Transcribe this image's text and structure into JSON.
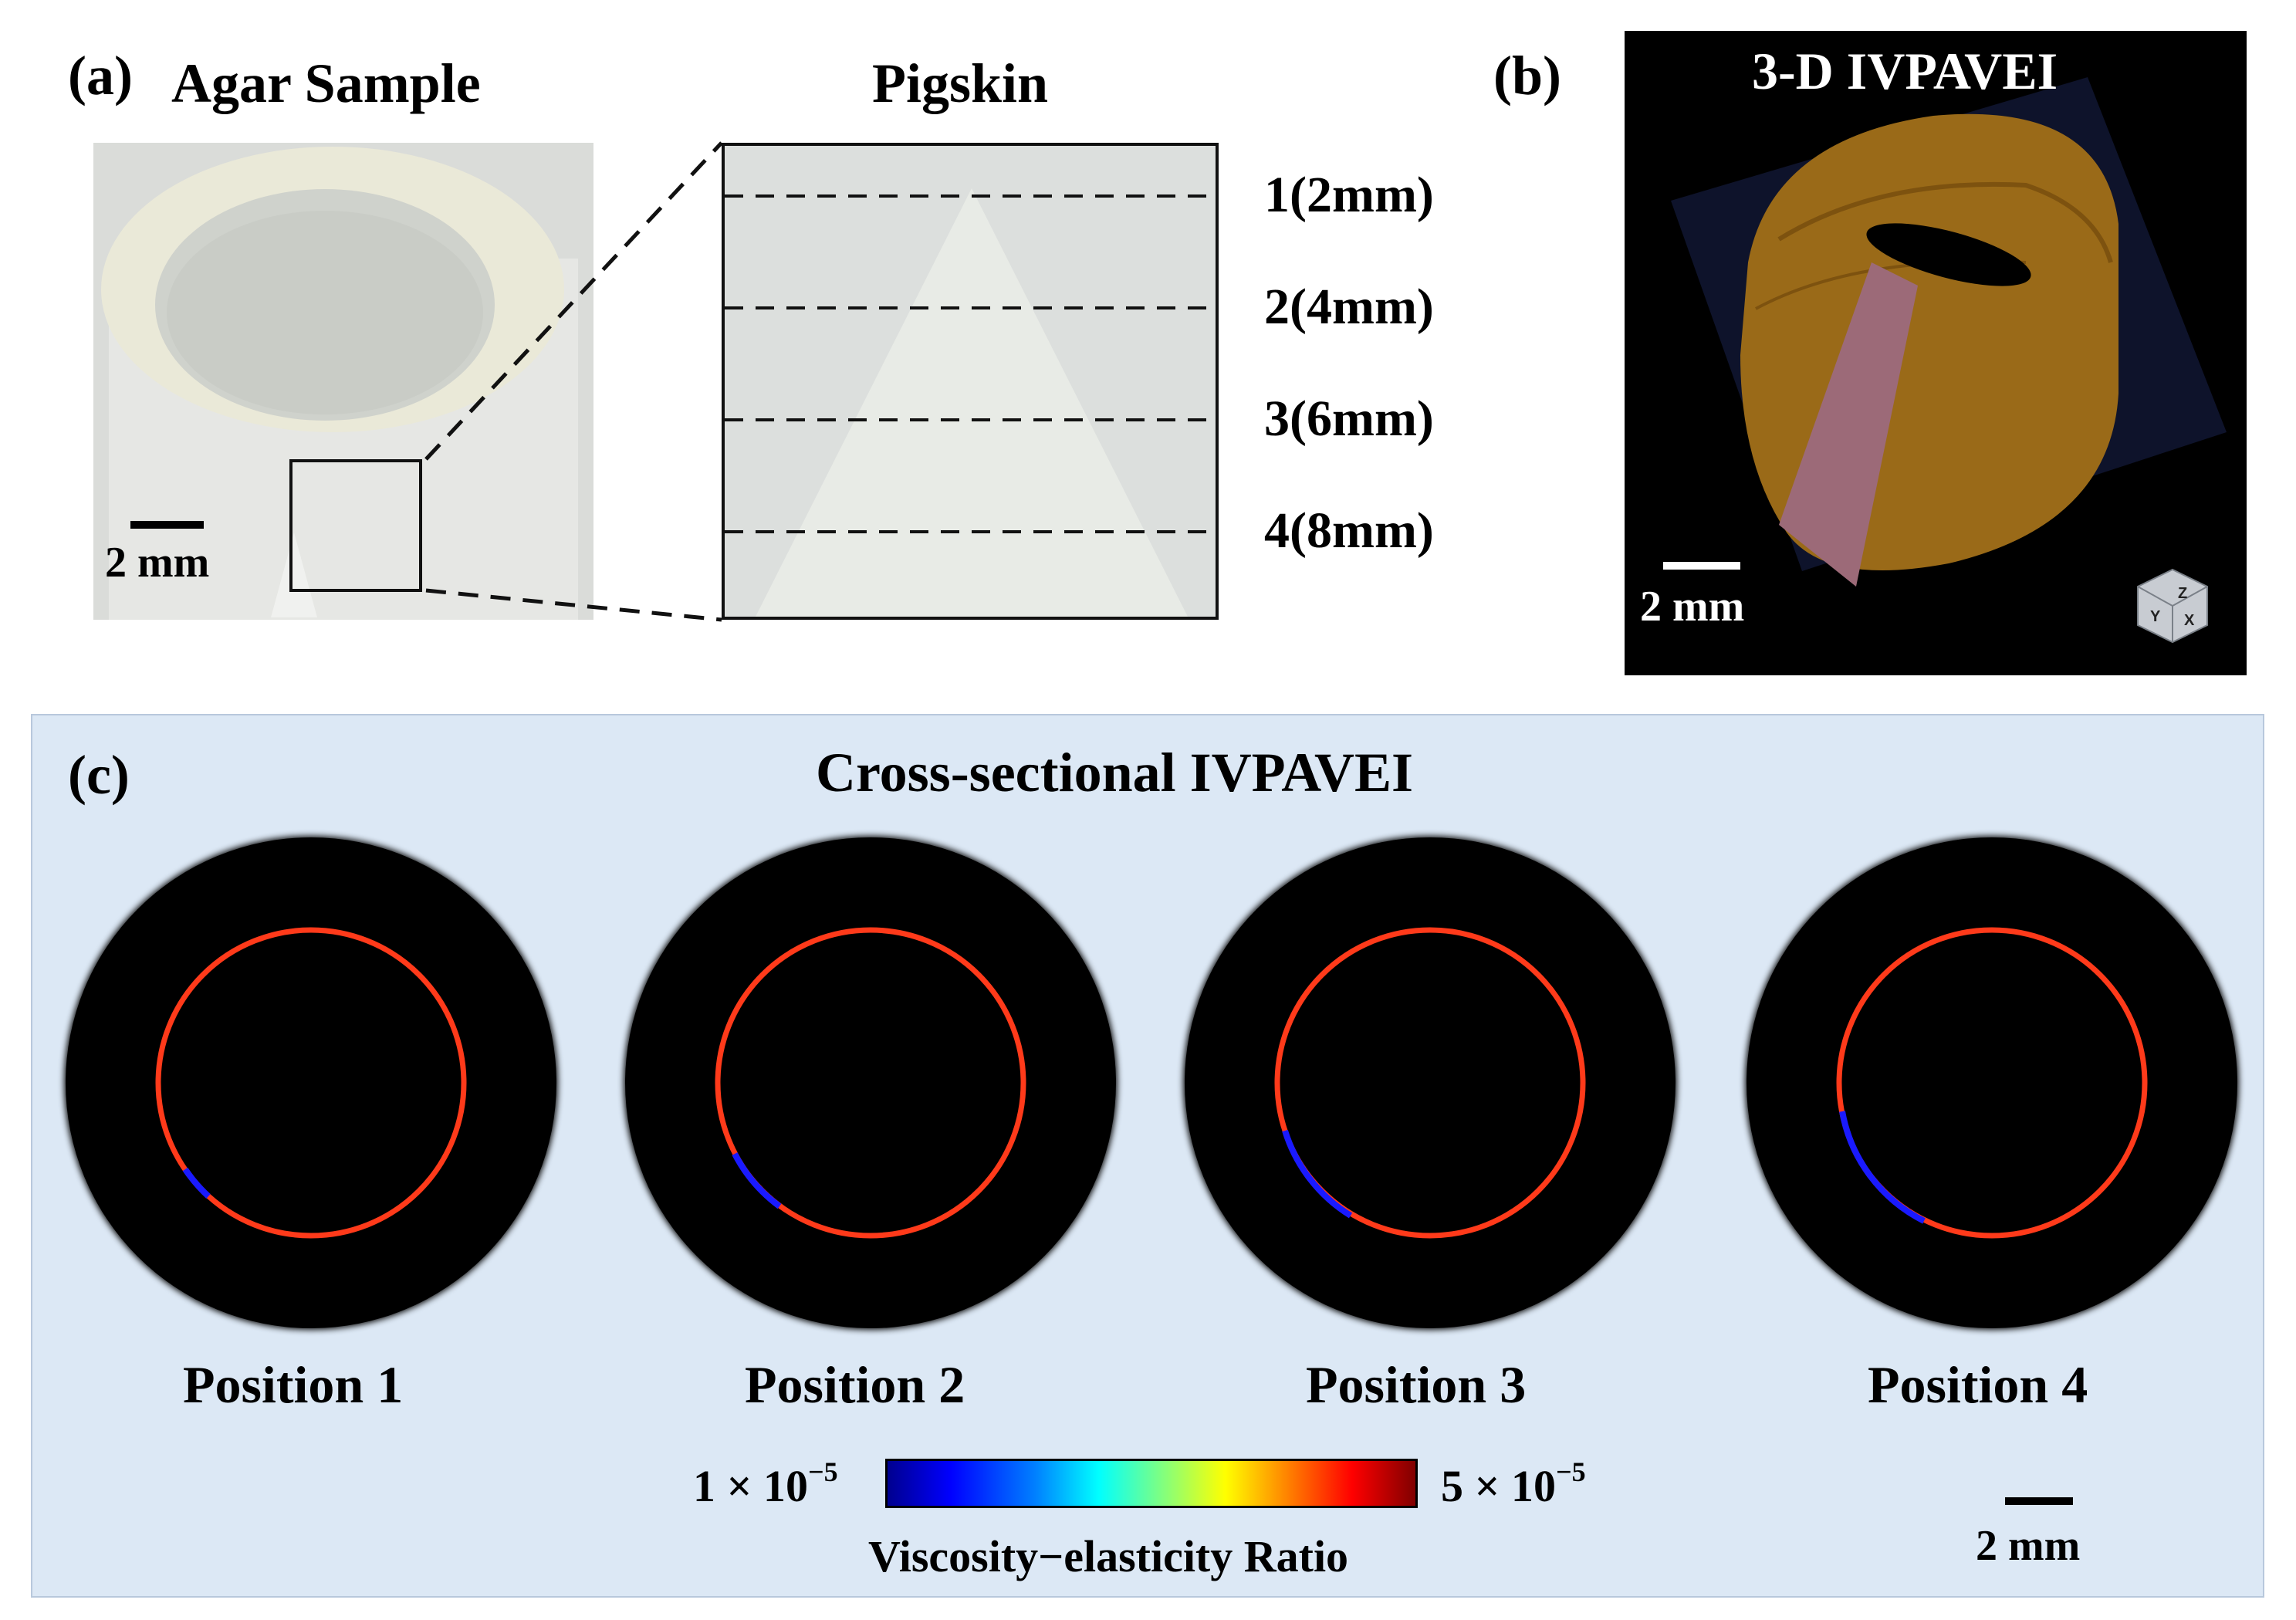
{
  "panel_a": {
    "label": "(a)",
    "agar_title": "Agar Sample",
    "pigskin_title": "Pigskin",
    "scale_bar": "2 mm",
    "depths": [
      "1(2mm)",
      "2(4mm)",
      "3(6mm)",
      "4(8mm)"
    ]
  },
  "panel_b": {
    "label": "(b)",
    "title": "3-D IVPAVEI",
    "scale_bar": "2 mm",
    "orientation_cube_axes": [
      "Z",
      "Y",
      "X"
    ]
  },
  "panel_c": {
    "label": "(c)",
    "title": "Cross-sectional IVPAVEI",
    "positions": [
      "Position 1",
      "Position 2",
      "Position 3",
      "Position 4"
    ],
    "scale_bar": "2 mm",
    "colorbar": {
      "min_label": "1 × 10",
      "min_exp": "−5",
      "max_label": "5 × 10",
      "max_exp": "−5",
      "title": "Viscosity−elasticity Ratio",
      "colormap": "jet",
      "ring_color": "#ff3a1a",
      "lesion_color": "#1a1aff"
    }
  }
}
